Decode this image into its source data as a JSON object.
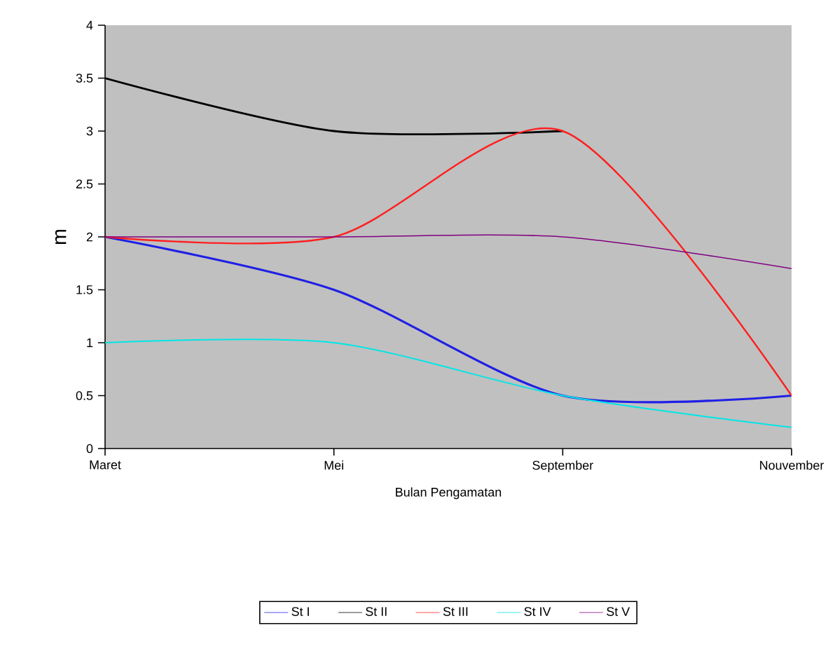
{
  "chart_data": {
    "type": "line",
    "xlabel": "Bulan Pengamatan",
    "ylabel": "m",
    "categories": [
      "Maret",
      "Mei",
      "September",
      "Nouvember"
    ],
    "series": [
      {
        "name": "St I",
        "color": "#1f1fe6",
        "values": [
          2,
          1.5,
          0.5,
          0.5
        ]
      },
      {
        "name": "St II",
        "color": "#000000",
        "values": [
          3.5,
          3,
          3,
          null
        ]
      },
      {
        "name": "St III",
        "color": "#ff1f1f",
        "values": [
          2,
          2,
          3,
          0.5
        ]
      },
      {
        "name": "St IV",
        "color": "#00e6e6",
        "values": [
          1,
          1,
          0.5,
          0.2
        ]
      },
      {
        "name": "St V",
        "color": "#800080",
        "values": [
          2,
          2,
          2,
          1.7
        ]
      }
    ],
    "ylim": [
      0,
      4
    ],
    "yticks": [
      0,
      0.5,
      1,
      1.5,
      2,
      2.5,
      3,
      3.5,
      4
    ],
    "grid": false,
    "legend": "bottom",
    "marker": "none",
    "line_style": "solid"
  }
}
